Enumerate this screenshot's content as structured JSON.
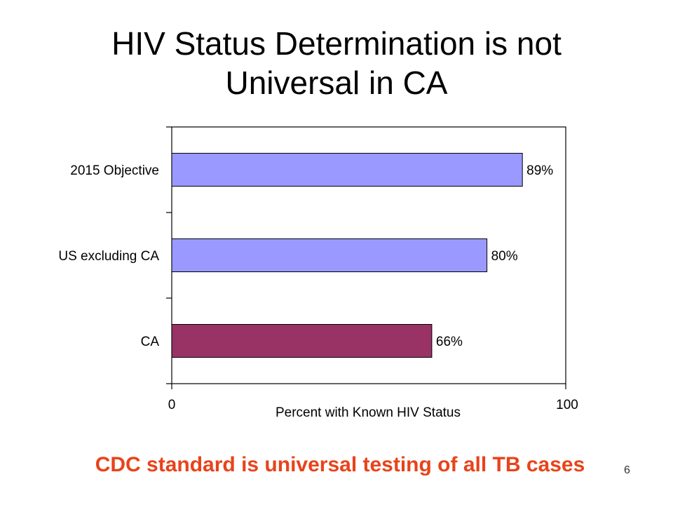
{
  "slide": {
    "title_line1": "HIV Status Determination is not",
    "title_line2": "Universal in CA",
    "footer": "CDC standard is universal testing of all TB cases",
    "page_number": "6"
  },
  "colors": {
    "footer_text": "#e8431a",
    "bar_default": "#9999ff",
    "bar_highlight": "#993366"
  },
  "chart_data": {
    "type": "bar",
    "orientation": "horizontal",
    "title": "",
    "xlabel": "Percent with Known HIV Status",
    "ylabel": "",
    "xlim": [
      0,
      100
    ],
    "x_ticks": [
      "0",
      "100"
    ],
    "categories": [
      "2015 Objective",
      "US excluding CA",
      "CA"
    ],
    "values": [
      89,
      80,
      66
    ],
    "data_labels": [
      "89%",
      "80%",
      "66%"
    ],
    "bar_colors": [
      "#9999ff",
      "#9999ff",
      "#993366"
    ],
    "grid": false,
    "legend": "none"
  }
}
